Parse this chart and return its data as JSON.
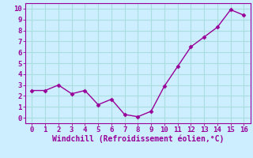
{
  "x": [
    0,
    1,
    2,
    3,
    4,
    5,
    6,
    7,
    8,
    9,
    10,
    11,
    12,
    13,
    14,
    15,
    16
  ],
  "y": [
    2.5,
    2.5,
    3.0,
    2.2,
    2.5,
    1.2,
    1.7,
    0.3,
    0.1,
    0.6,
    2.9,
    4.7,
    6.5,
    7.4,
    8.3,
    9.9,
    9.4
  ],
  "line_color": "#990099",
  "marker": "D",
  "marker_size": 2.5,
  "xlabel": "Windchill (Refroidissement éolien,°C)",
  "xlim": [
    -0.5,
    16.5
  ],
  "ylim": [
    -0.5,
    10.5
  ],
  "xticks": [
    0,
    1,
    2,
    3,
    4,
    5,
    6,
    7,
    8,
    9,
    10,
    11,
    12,
    13,
    14,
    15,
    16
  ],
  "yticks": [
    0,
    1,
    2,
    3,
    4,
    5,
    6,
    7,
    8,
    9,
    10
  ],
  "bg_color": "#cceeff",
  "grid_color": "#aadddd",
  "tick_color": "#990099",
  "label_color": "#990099",
  "xlabel_fontsize": 7,
  "tick_fontsize": 6.5,
  "spine_color": "#990099"
}
